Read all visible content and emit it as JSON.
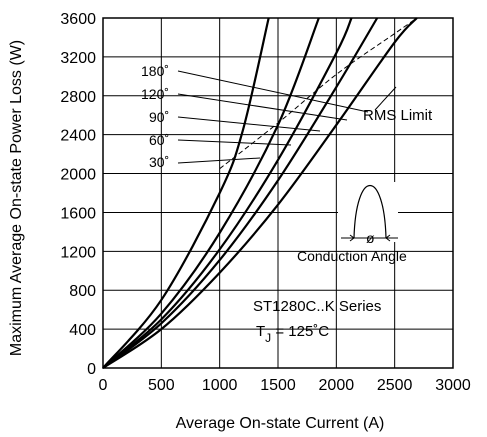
{
  "chart_data": {
    "type": "line",
    "xlabel": "Average On-state Current (A)",
    "ylabel": "Maximum Average On-state Power Loss (W)",
    "xlim": [
      0,
      3000
    ],
    "ylim": [
      0,
      3600
    ],
    "xticks": [
      "0",
      "500",
      "1000",
      "1500",
      "2000",
      "2500",
      "3000"
    ],
    "yticks": [
      "0",
      "400",
      "800",
      "1200",
      "1600",
      "2000",
      "2400",
      "2800",
      "3200",
      "3600"
    ],
    "grid": true,
    "series": [
      {
        "name": "30˚",
        "x": [
          0,
          500,
          1000,
          1200,
          1420
        ],
        "y": [
          0,
          700,
          1800,
          2450,
          3600
        ]
      },
      {
        "name": "60˚",
        "x": [
          0,
          500,
          1000,
          1500,
          1850
        ],
        "y": [
          0,
          560,
          1390,
          2500,
          3600
        ]
      },
      {
        "name": "90˚",
        "x": [
          0,
          500,
          1000,
          1500,
          2000,
          2130
        ],
        "y": [
          0,
          500,
          1220,
          2140,
          3240,
          3600
        ]
      },
      {
        "name": "120˚",
        "x": [
          0,
          500,
          1000,
          1500,
          2000,
          2350
        ],
        "y": [
          0,
          460,
          1110,
          1930,
          2890,
          3600
        ]
      },
      {
        "name": "180˚",
        "x": [
          0,
          500,
          1000,
          1500,
          2000,
          2500,
          2690
        ],
        "y": [
          0,
          400,
          980,
          1680,
          2500,
          3350,
          3600
        ]
      }
    ],
    "rms_limit": {
      "x": [
        1000,
        1500,
        2000,
        2500,
        2690
      ],
      "y": [
        2050,
        2520,
        3020,
        3440,
        3600
      ]
    },
    "annotations": {
      "rms_limit": "RMS Limit",
      "conduction_angle": "Conduction Angle",
      "phi": "ø",
      "series_name": "ST1280C..K Series",
      "tj_prefix": "T",
      "tj_sub": "J",
      "tj_suffix": " = 125˚C"
    }
  }
}
